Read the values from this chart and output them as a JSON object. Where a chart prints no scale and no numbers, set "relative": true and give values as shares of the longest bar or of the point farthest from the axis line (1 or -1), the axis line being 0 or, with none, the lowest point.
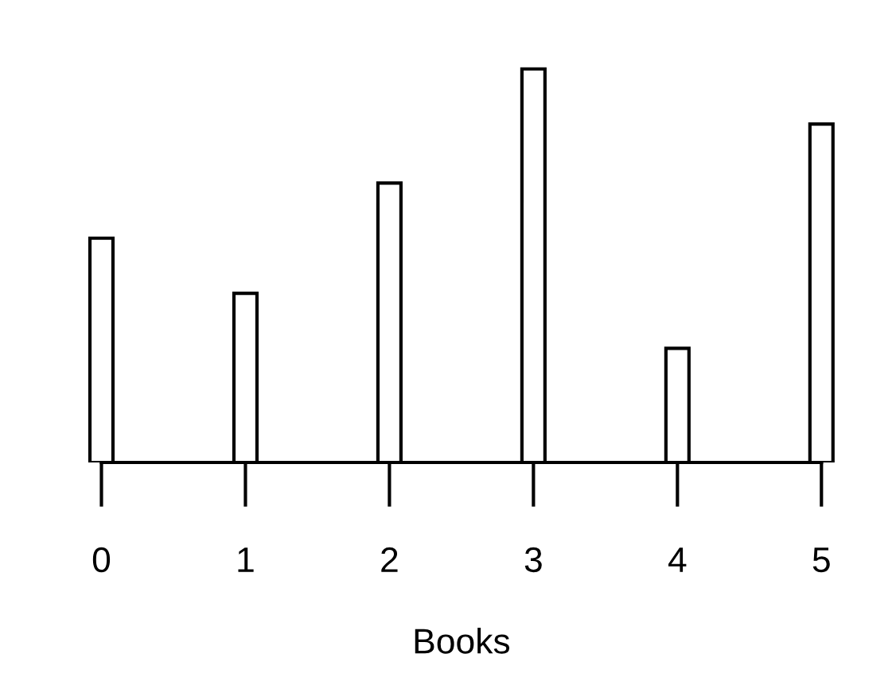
{
  "chart_data": {
    "type": "bar",
    "xlabel": "Books",
    "relative": true,
    "categories": [
      "0",
      "1",
      "2",
      "3",
      "4",
      "5"
    ],
    "values": [
      0.57,
      0.43,
      0.71,
      1,
      0.29,
      0.86
    ],
    "color": "#000000",
    "grid": false
  }
}
